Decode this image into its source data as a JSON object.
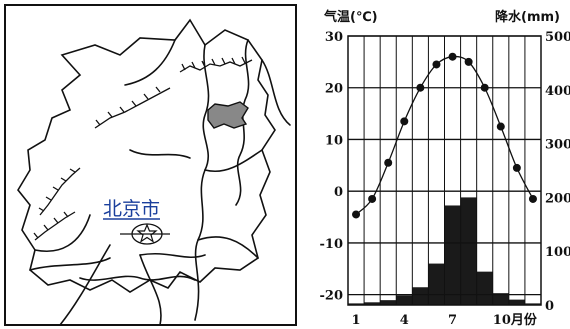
{
  "map": {
    "city_label": "北京市"
  },
  "chart_data": {
    "type": "line+bar",
    "left_axis_title": "气温(℃)",
    "right_axis_title": "降水(mm)",
    "x_label_suffix": "月份",
    "x_tick_labels": [
      "1",
      "4",
      "7",
      "10月份"
    ],
    "x_tick_months": [
      1,
      4,
      7,
      10
    ],
    "months": [
      1,
      2,
      3,
      4,
      5,
      6,
      7,
      8,
      9,
      10,
      11,
      12
    ],
    "temperature_c": [
      -4.5,
      -1.5,
      5.5,
      13.5,
      20,
      24.5,
      26,
      25,
      20,
      12.5,
      4.5,
      -1.5
    ],
    "precipitation_mm": [
      3,
      5,
      9,
      18,
      33,
      77,
      185,
      200,
      62,
      22,
      10,
      3
    ],
    "temp_range": [
      -22,
      30
    ],
    "precip_range": [
      0,
      500
    ],
    "temp_ticks": [
      30,
      20,
      10,
      0,
      -10,
      -20
    ],
    "precip_ticks": [
      500,
      400,
      300,
      200,
      100,
      0
    ]
  }
}
